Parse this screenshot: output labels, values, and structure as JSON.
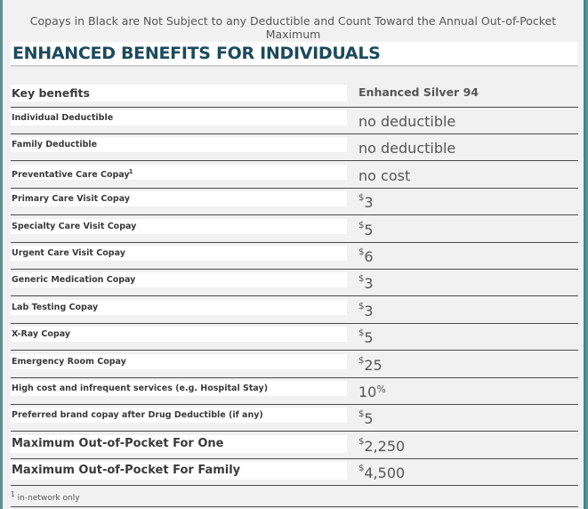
{
  "note": "Copays in Black are Not Subject to any Deductible and Count Toward the Annual Out-of-Pocket Maximum",
  "title": "ENHANCED BENEFITS FOR INDIVIDUALS",
  "header": {
    "label": "Key benefits",
    "plan": "Enhanced Silver 94"
  },
  "rows": [
    {
      "label": "Individual Deductible",
      "prefix": "",
      "value": "no deductible",
      "suffix": ""
    },
    {
      "label": "Family Deductible",
      "prefix": "",
      "value": "no deductible",
      "suffix": ""
    },
    {
      "label": "Preventative Care Copay",
      "label_sup": "1",
      "prefix": "",
      "value": "no cost",
      "suffix": ""
    },
    {
      "label": "Primary Care Visit Copay",
      "prefix": "$",
      "value": "3",
      "suffix": ""
    },
    {
      "label": "Specialty Care Visit Copay",
      "prefix": "$",
      "value": "5",
      "suffix": ""
    },
    {
      "label": "Urgent Care Visit Copay",
      "prefix": "$",
      "value": "6",
      "suffix": ""
    },
    {
      "label": "Generic Medication Copay",
      "prefix": "$",
      "value": "3",
      "suffix": ""
    },
    {
      "label": "Lab Testing Copay",
      "prefix": "$",
      "value": "3",
      "suffix": ""
    },
    {
      "label": "X-Ray Copay",
      "prefix": "$",
      "value": "5",
      "suffix": ""
    },
    {
      "label": "Emergency Room Copay",
      "prefix": "$",
      "value": "25",
      "suffix": ""
    },
    {
      "label": "High cost and infrequent services (e.g. Hospital Stay)",
      "prefix": "",
      "value": "10",
      "suffix": "%"
    },
    {
      "label": "Preferred brand copay after Drug Deductible (if any)",
      "prefix": "$",
      "value": "5",
      "suffix": ""
    },
    {
      "label": "Maximum Out-of-Pocket For One",
      "prefix": "$",
      "value": "2,250",
      "suffix": "",
      "big": true
    },
    {
      "label": "Maximum Out-of-Pocket For Family",
      "prefix": "$",
      "value": "4,500",
      "suffix": "",
      "big": true
    }
  ],
  "footnote": {
    "marker": "1",
    "text": " in-network only"
  }
}
